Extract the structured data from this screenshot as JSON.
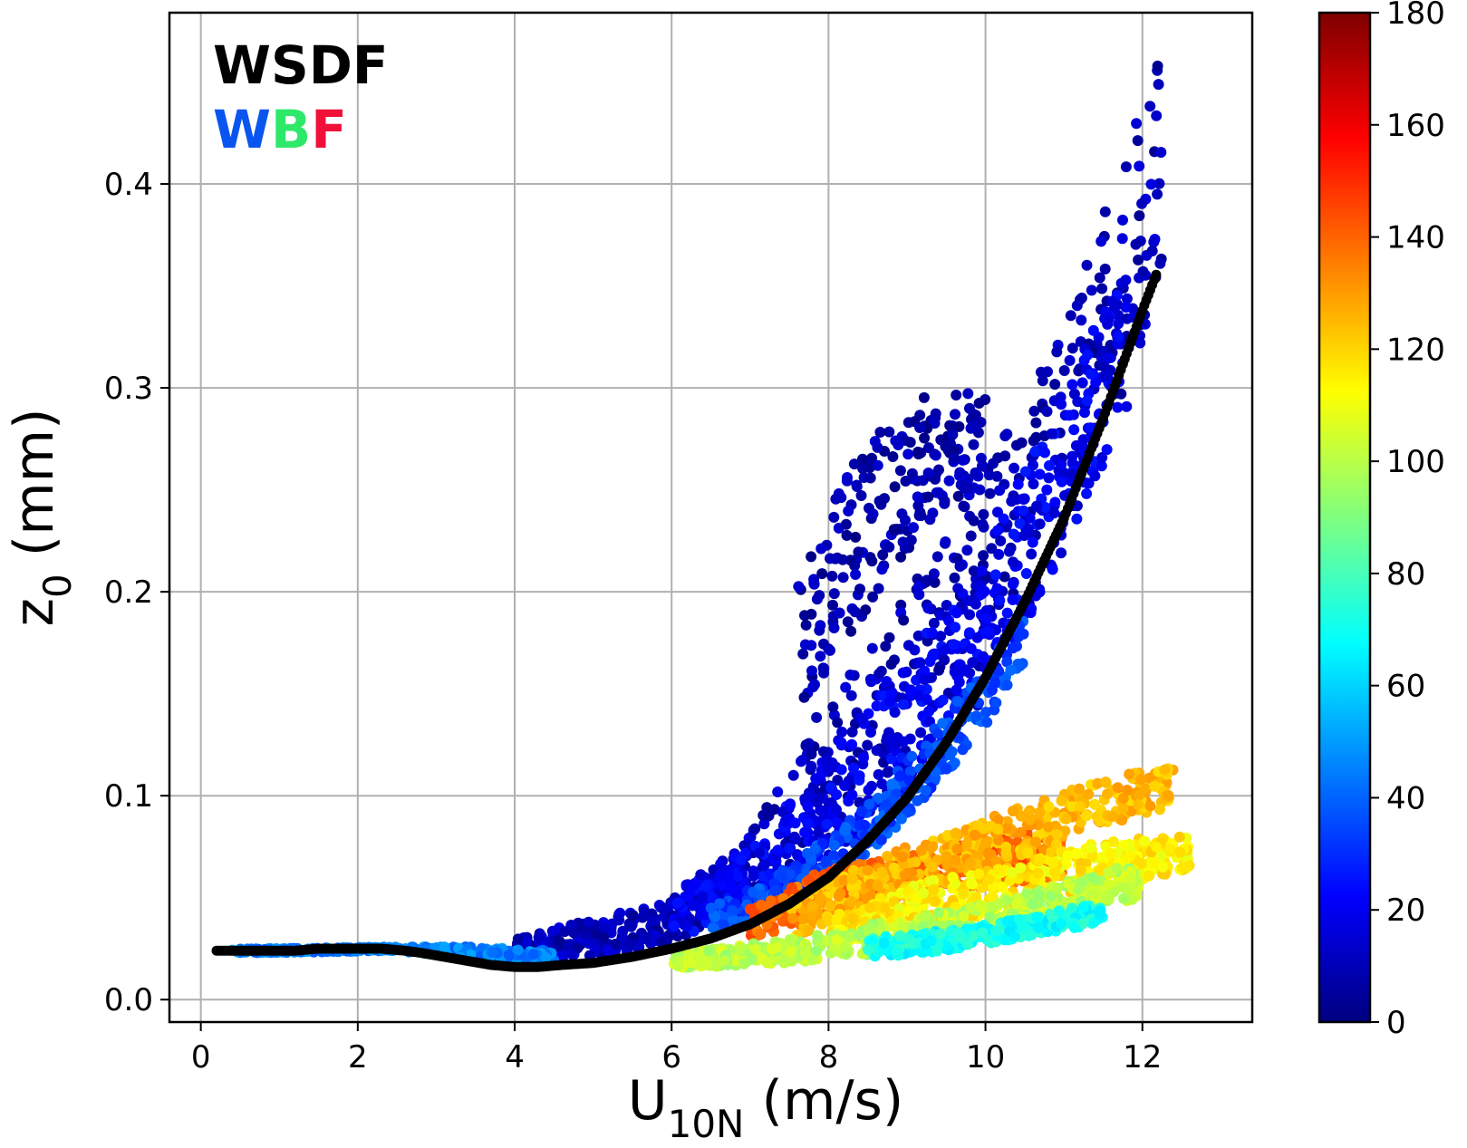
{
  "chart_data": {
    "type": "scatter",
    "xlabel": {
      "main": "U",
      "sub": "10N",
      "unit": " (m/s)"
    },
    "ylabel": {
      "main": "z",
      "sub": "0",
      "unit": " (mm)"
    },
    "xlim": [
      -0.4,
      13.4
    ],
    "ylim": [
      -0.011,
      0.484
    ],
    "x_ticks": [
      0,
      2,
      4,
      6,
      8,
      10,
      12
    ],
    "x_tick_labels": [
      "0",
      "2",
      "4",
      "6",
      "8",
      "10",
      "12"
    ],
    "y_ticks": [
      0.0,
      0.1,
      0.2,
      0.3,
      0.4
    ],
    "y_tick_labels": [
      "0.0",
      "0.1",
      "0.2",
      "0.3",
      "0.4"
    ],
    "grid": true,
    "legend": {
      "placement": "top-left",
      "entries": [
        {
          "letters": [
            {
              "text": "WSDF",
              "color": "#000000"
            }
          ]
        },
        {
          "letters": [
            {
              "text": "W",
              "color": "#0a55f0"
            },
            {
              "text": "B",
              "color": "#2ee86a"
            },
            {
              "text": "F",
              "color": "#f0103a"
            }
          ]
        }
      ]
    },
    "colorbar": {
      "colormap": "jet",
      "range": [
        0,
        180
      ],
      "ticks": [
        0,
        20,
        40,
        60,
        80,
        100,
        120,
        140,
        160,
        180
      ],
      "tick_labels": [
        "0",
        "20",
        "40",
        "60",
        "80",
        "100",
        "120",
        "140",
        "160",
        "180"
      ]
    },
    "series": [
      {
        "color": "#000000",
        "points": [
          [
            0.2,
            0.024
          ],
          [
            0.4,
            0.024
          ],
          [
            0.6,
            0.024
          ],
          [
            0.8,
            0.024
          ],
          [
            1.0,
            0.024
          ],
          [
            1.2,
            0.024
          ],
          [
            1.5,
            0.025
          ],
          [
            1.8,
            0.025
          ],
          [
            2.3,
            0.025
          ],
          [
            2.6,
            0.024
          ],
          [
            2.8,
            0.023
          ],
          [
            3.1,
            0.021
          ],
          [
            3.4,
            0.019
          ],
          [
            3.7,
            0.017
          ],
          [
            4.0,
            0.016
          ],
          [
            4.3,
            0.016
          ],
          [
            4.6,
            0.017
          ],
          [
            5.0,
            0.018
          ],
          [
            5.5,
            0.021
          ],
          [
            6.0,
            0.025
          ],
          [
            6.5,
            0.03
          ],
          [
            7.0,
            0.037
          ],
          [
            7.5,
            0.047
          ],
          [
            8.0,
            0.06
          ],
          [
            8.5,
            0.078
          ],
          [
            9.0,
            0.099
          ],
          [
            9.5,
            0.126
          ],
          [
            10.0,
            0.158
          ],
          [
            10.5,
            0.195
          ],
          [
            11.0,
            0.236
          ],
          [
            11.5,
            0.285
          ],
          [
            12.0,
            0.338
          ],
          [
            12.2,
            0.358
          ]
        ]
      },
      {
        "color_by_colorbar": true,
        "groups": [
          {
            "value": 10,
            "band": [
              [
                4.0,
                0.018,
                0.03
              ],
              [
                5.0,
                0.02,
                0.04
              ],
              [
                6.0,
                0.028,
                0.05
              ],
              [
                7.0,
                0.04,
                0.08
              ],
              [
                8.0,
                0.062,
                0.15
              ],
              [
                9.0,
                0.095,
                0.2
              ],
              [
                10.0,
                0.15,
                0.26
              ],
              [
                11.0,
                0.22,
                0.33
              ],
              [
                12.0,
                0.32,
                0.44
              ],
              [
                12.25,
                0.355,
                0.465
              ]
            ]
          },
          {
            "value": 8,
            "band": [
              [
                7.6,
                0.14,
                0.205
              ],
              [
                8.2,
                0.175,
                0.26
              ],
              [
                8.8,
                0.21,
                0.285
              ],
              [
                9.4,
                0.24,
                0.3
              ],
              [
                10.0,
                0.255,
                0.3
              ]
            ]
          },
          {
            "value": 20,
            "band": [
              [
                6.0,
                0.03,
                0.055
              ],
              [
                7.0,
                0.042,
                0.075
              ],
              [
                8.0,
                0.065,
                0.12
              ],
              [
                9.0,
                0.1,
                0.17
              ],
              [
                10.0,
                0.15,
                0.22
              ],
              [
                11.0,
                0.215,
                0.3
              ],
              [
                11.8,
                0.29,
                0.36
              ]
            ]
          },
          {
            "value": 35,
            "band": [
              [
                6.5,
                0.032,
                0.045
              ],
              [
                7.5,
                0.045,
                0.065
              ],
              [
                8.5,
                0.07,
                0.095
              ],
              [
                9.5,
                0.11,
                0.14
              ],
              [
                10.5,
                0.16,
                0.19
              ]
            ]
          },
          {
            "value": 140,
            "band": [
              [
                7.0,
                0.03,
                0.045
              ],
              [
                8.0,
                0.04,
                0.065
              ],
              [
                9.0,
                0.05,
                0.07
              ],
              [
                10.0,
                0.055,
                0.08
              ],
              [
                11.0,
                0.06,
                0.085
              ]
            ]
          },
          {
            "value": 125,
            "band": [
              [
                7.5,
                0.03,
                0.05
              ],
              [
                9.0,
                0.05,
                0.075
              ],
              [
                10.5,
                0.07,
                0.095
              ],
              [
                11.5,
                0.085,
                0.108
              ],
              [
                12.4,
                0.095,
                0.115
              ]
            ]
          },
          {
            "value": 115,
            "band": [
              [
                8.0,
                0.025,
                0.04
              ],
              [
                9.0,
                0.035,
                0.055
              ],
              [
                10.5,
                0.045,
                0.07
              ],
              [
                11.5,
                0.055,
                0.078
              ],
              [
                12.6,
                0.064,
                0.08
              ]
            ]
          },
          {
            "value": 100,
            "band": [
              [
                6.0,
                0.015,
                0.022
              ],
              [
                7.5,
                0.018,
                0.03
              ],
              [
                9.0,
                0.024,
                0.04
              ],
              [
                10.5,
                0.034,
                0.052
              ],
              [
                12.0,
                0.05,
                0.068
              ]
            ]
          },
          {
            "value": 70,
            "band": [
              [
                8.5,
                0.02,
                0.03
              ],
              [
                9.5,
                0.024,
                0.034
              ],
              [
                10.5,
                0.03,
                0.04
              ],
              [
                11.5,
                0.038,
                0.048
              ]
            ]
          },
          {
            "value": 45,
            "band": [
              [
                0.3,
                0.023,
                0.025
              ],
              [
                1.0,
                0.023,
                0.025
              ],
              [
                2.5,
                0.024,
                0.026
              ],
              [
                3.5,
                0.02,
                0.026
              ],
              [
                4.5,
                0.018,
                0.024
              ]
            ]
          }
        ]
      }
    ]
  }
}
